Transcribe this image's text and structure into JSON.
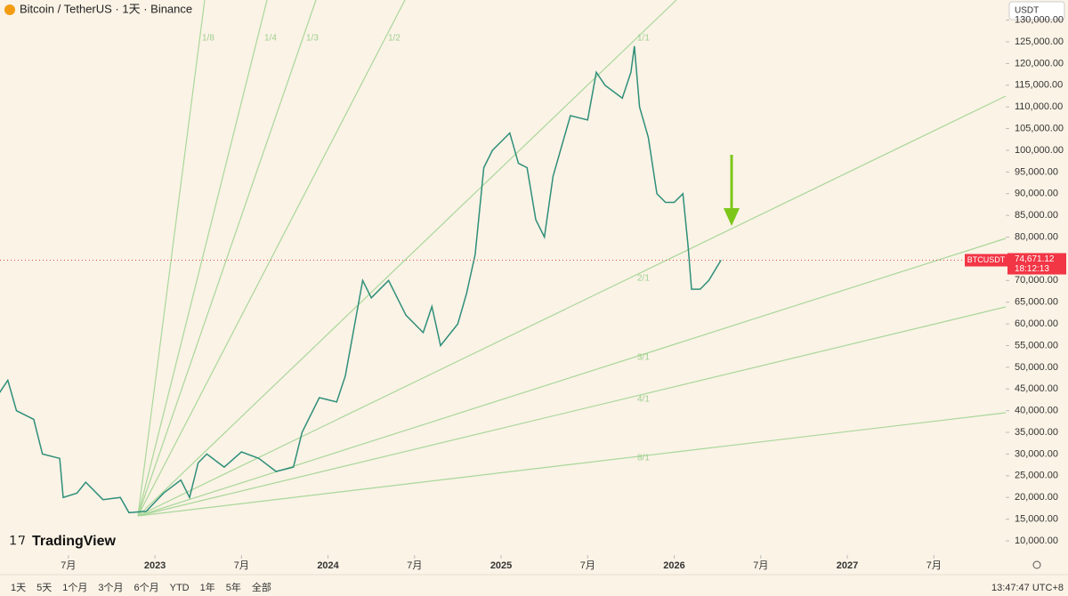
{
  "header": {
    "title": "Bitcoin / TetherUS · 1天 · Binance",
    "currency": "USDT",
    "time": "13:47:47 UTC+8",
    "logo": "TradingView",
    "ranges": [
      "1天",
      "5天",
      "1个月",
      "3个月",
      "6个月",
      "YTD",
      "1年",
      "5年",
      "全部"
    ]
  },
  "chart_data": {
    "type": "line",
    "series": [
      {
        "name": "BTCUSDT",
        "color": "#2f8f7a",
        "x": [
          2022.1,
          2022.15,
          2022.2,
          2022.3,
          2022.35,
          2022.45,
          2022.47,
          2022.55,
          2022.6,
          2022.7,
          2022.8,
          2022.85,
          2022.95,
          2023.05,
          2023.15,
          2023.2,
          2023.25,
          2023.3,
          2023.4,
          2023.5,
          2023.6,
          2023.7,
          2023.8,
          2023.85,
          2023.95,
          2024.05,
          2024.1,
          2024.2,
          2024.25,
          2024.35,
          2024.45,
          2024.55,
          2024.6,
          2024.65,
          2024.75,
          2024.8,
          2024.85,
          2024.9,
          2024.95,
          2025.05,
          2025.1,
          2025.15,
          2025.2,
          2025.25,
          2025.3,
          2025.4,
          2025.5,
          2025.55,
          2025.6,
          2025.7,
          2025.75,
          2025.77,
          2025.8,
          2025.85,
          2025.9,
          2025.95,
          2026.0,
          2026.05,
          2026.08,
          2026.1,
          2026.15,
          2026.2,
          2026.27
        ],
        "values": [
          44000,
          47000,
          40000,
          38000,
          30000,
          29000,
          20000,
          21000,
          23500,
          19500,
          20000,
          16500,
          16800,
          21000,
          24000,
          20000,
          28000,
          30000,
          27000,
          30500,
          29000,
          26000,
          27000,
          35000,
          43000,
          42000,
          48000,
          70000,
          66000,
          70000,
          62000,
          58000,
          64000,
          55000,
          60000,
          67000,
          76000,
          96000,
          100000,
          104000,
          97000,
          96000,
          84000,
          80000,
          94000,
          108000,
          107000,
          118000,
          115000,
          112000,
          118000,
          124000,
          110000,
          103000,
          90000,
          88000,
          88000,
          90000,
          78000,
          68000,
          68000,
          70000,
          74671.12
        ]
      }
    ],
    "current_price": {
      "value": 74671.12,
      "label": "74,671.12"
    },
    "countdown": "18:12:13",
    "fan_labels": [
      "1/8",
      "1/4",
      "1/3",
      "1/2",
      "1/1",
      "2/1",
      "3/1",
      "4/1",
      "8/1"
    ],
    "xlim": [
      2022.105,
      2027.915
    ],
    "ylim": [
      7540,
      134640
    ],
    "xticks": [
      {
        "value": 2022.5,
        "label": "7月"
      },
      2023,
      {
        "value": 2023.5,
        "label": "7月"
      },
      2024,
      {
        "value": 2024.5,
        "label": "7月"
      },
      2025,
      {
        "value": 2025.5,
        "label": "7月"
      },
      2026,
      {
        "value": 2026.5,
        "label": "7月"
      },
      2027,
      {
        "value": 2027.5,
        "label": "7月"
      }
    ],
    "yticks": [
      {
        "value": 10000,
        "label": "10,000.00"
      },
      {
        "value": 15000,
        "label": "15,000.00"
      },
      {
        "value": 20000,
        "label": "20,000.00"
      },
      {
        "value": 25000,
        "label": "25,000.00"
      },
      {
        "value": 30000,
        "label": "30,000.00"
      },
      {
        "value": 35000,
        "label": "35,000.00"
      },
      {
        "value": 40000,
        "label": "40,000.00"
      },
      {
        "value": 45000,
        "label": "45,000.00"
      },
      {
        "value": 50000,
        "label": "50,000.00"
      },
      {
        "value": 55000,
        "label": "55,000.00"
      },
      {
        "value": 60000,
        "label": "60,000.00"
      },
      {
        "value": 65000,
        "label": "65,000.00"
      },
      {
        "value": 70000,
        "label": "70,000.00"
      },
      {
        "value": 75000,
        "label": "75,000.00"
      },
      {
        "value": 80000,
        "label": "80,000.00"
      },
      {
        "value": 85000,
        "label": "85,000.00"
      },
      {
        "value": 90000,
        "label": "90,000.00"
      },
      {
        "value": 95000,
        "label": "95,000.00"
      },
      {
        "value": 100000,
        "label": "100,000.00"
      },
      {
        "value": 105000,
        "label": "105,000.00"
      },
      {
        "value": 110000,
        "label": "110,000.00"
      },
      {
        "value": 115000,
        "label": "115,000.00"
      },
      {
        "value": 120000,
        "label": "120,000.00"
      },
      {
        "value": 125000,
        "label": "125,000.00"
      },
      {
        "value": 130000,
        "label": "130,000.00"
      }
    ]
  }
}
